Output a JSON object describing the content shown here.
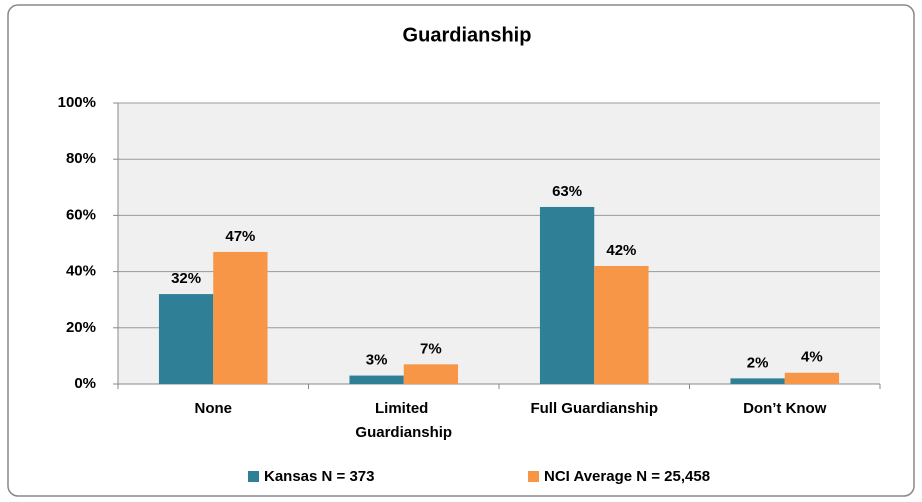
{
  "chart_data": {
    "type": "bar",
    "title": "Guardianship",
    "categories": [
      "None",
      "Limited Guardianship",
      "Full Guardianship",
      "Don’t Know"
    ],
    "series": [
      {
        "name": "Kansas N = 373",
        "color": "#2f7f97",
        "values": [
          32,
          3,
          63,
          2
        ],
        "value_labels": [
          "32%",
          "3%",
          "63%",
          "2%"
        ]
      },
      {
        "name": "NCI Average N = 25,458",
        "color": "#f79646",
        "values": [
          47,
          7,
          42,
          4
        ],
        "value_labels": [
          "47%",
          "7%",
          "42%",
          "4%"
        ]
      }
    ],
    "ylim": [
      0,
      100
    ],
    "yticks": [
      {
        "value": 0,
        "label": "0%"
      },
      {
        "value": 20,
        "label": "20%"
      },
      {
        "value": 40,
        "label": "40%"
      },
      {
        "value": 60,
        "label": "60%"
      },
      {
        "value": 80,
        "label": "80%"
      },
      {
        "value": 100,
        "label": "100%"
      }
    ],
    "grid": true,
    "legend": "bottom"
  }
}
